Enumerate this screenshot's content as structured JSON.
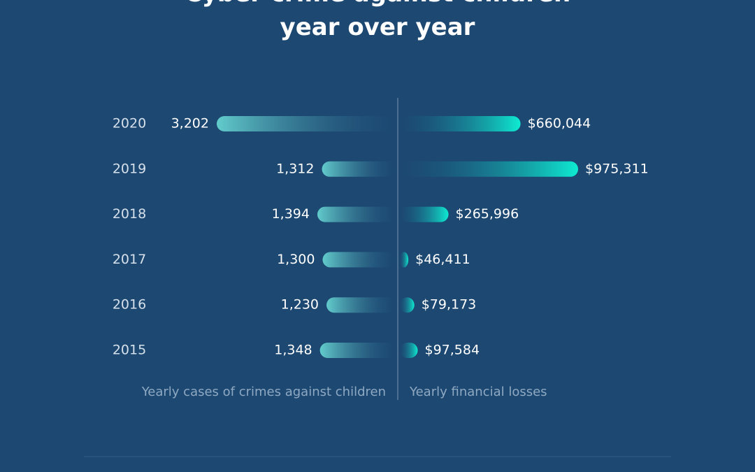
{
  "chart_data": {
    "type": "butterfly",
    "title": "Cyber crime against children year over year",
    "categories": [
      "2020",
      "2019",
      "2018",
      "2017",
      "2016",
      "2015"
    ],
    "series": [
      {
        "name": "Yearly cases of crimes against children",
        "color": "#62cccc",
        "values": [
          3202,
          1312,
          1394,
          1300,
          1230,
          1348
        ],
        "value_labels": [
          "3,202",
          "1,312",
          "1,394",
          "1,300",
          "1,230",
          "1,348"
        ]
      },
      {
        "name": "Yearly financial losses",
        "color": "#0eebd2",
        "values": [
          660044,
          975311,
          265996,
          46411,
          79173,
          97584
        ],
        "value_labels": [
          "$660,044",
          "$975,311",
          "$265,996",
          "$46,411",
          "$79,173",
          "$97,584"
        ]
      }
    ]
  }
}
